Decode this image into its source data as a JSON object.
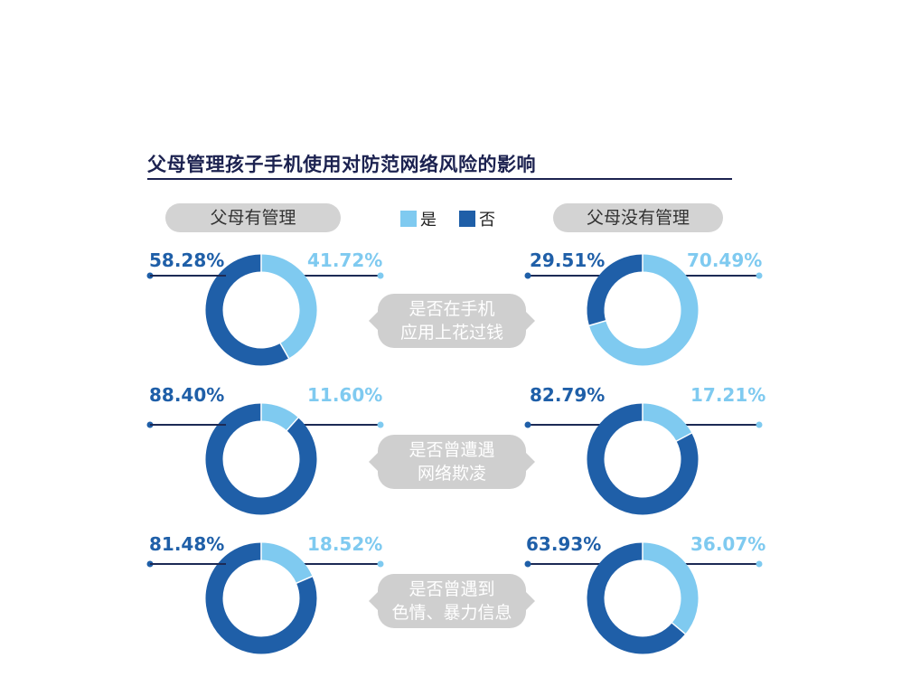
{
  "title": "父母管理孩子手机使用对防范网络风险的影响",
  "groups": {
    "left": "父母有管理",
    "right": "父母没有管理"
  },
  "legend": {
    "yes": "是",
    "no": "否"
  },
  "colors": {
    "yes": "#7fcaf0",
    "no": "#1f5fa8",
    "leader": "#1c2a55",
    "pill": "#d3d3d3",
    "title": "#1c2250"
  },
  "questions": [
    {
      "line1": "是否在手机",
      "line2": "应用上花过钱"
    },
    {
      "line1": "是否曾遭遇",
      "line2": "网络欺凌"
    },
    {
      "line1": "是否曾遇到",
      "line2": "色情、暴力信息"
    }
  ],
  "labels": {
    "r0": {
      "left_no": "58.28%",
      "left_yes": "41.72%",
      "right_no": "29.51%",
      "right_yes": "70.49%"
    },
    "r1": {
      "left_no": "88.40%",
      "left_yes": "11.60%",
      "right_no": "82.79%",
      "right_yes": "17.21%"
    },
    "r2": {
      "left_no": "81.48%",
      "left_yes": "18.52%",
      "right_no": "63.93%",
      "right_yes": "36.07%"
    }
  },
  "chart_data": {
    "type": "pie",
    "categories": [
      "是",
      "否"
    ],
    "charts": [
      {
        "group": "父母有管理",
        "question": "是否在手机应用上花过钱",
        "values": {
          "是": 41.72,
          "否": 58.28
        }
      },
      {
        "group": "父母没有管理",
        "question": "是否在手机应用上花过钱",
        "values": {
          "是": 70.49,
          "否": 29.51
        }
      },
      {
        "group": "父母有管理",
        "question": "是否曾遭遇网络欺凌",
        "values": {
          "是": 11.6,
          "否": 88.4
        }
      },
      {
        "group": "父母没有管理",
        "question": "是否曾遭遇网络欺凌",
        "values": {
          "是": 17.21,
          "否": 82.79
        }
      },
      {
        "group": "父母有管理",
        "question": "是否曾遇到色情、暴力信息",
        "values": {
          "是": 18.52,
          "否": 81.48
        }
      },
      {
        "group": "父母没有管理",
        "question": "是否曾遇到色情、暴力信息",
        "values": {
          "是": 36.07,
          "否": 63.93
        }
      }
    ]
  }
}
